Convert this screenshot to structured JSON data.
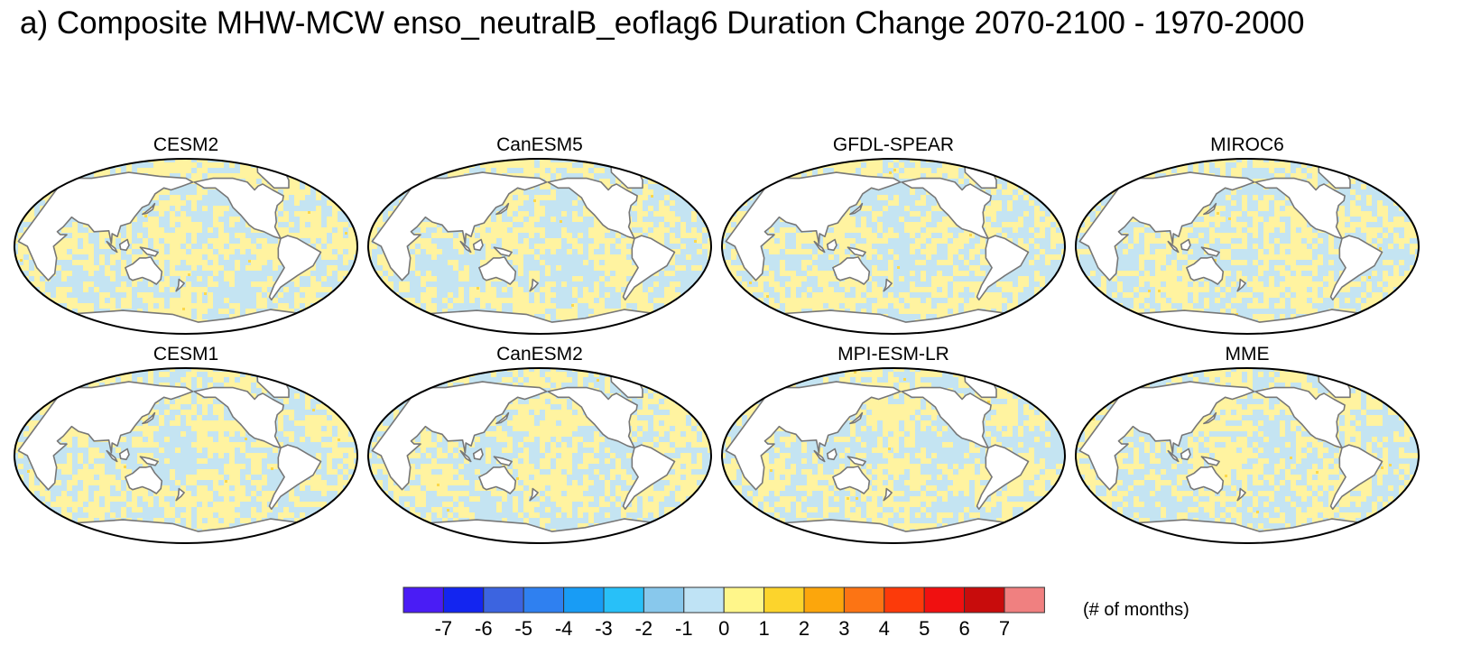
{
  "figure": {
    "title": "a) Composite MHW-MCW enso_neutralB_eoflag6 Duration Change 2070-2100 - 1970-2000"
  },
  "panels": [
    {
      "name": "CESM2"
    },
    {
      "name": "CanESM5"
    },
    {
      "name": "GFDL-SPEAR"
    },
    {
      "name": "MIROC6"
    },
    {
      "name": "CESM1"
    },
    {
      "name": "CanESM2"
    },
    {
      "name": "MPI-ESM-LR"
    },
    {
      "name": "MME"
    }
  ],
  "colorbar": {
    "labels": [
      "-7",
      "-6",
      "-5",
      "-4",
      "-3",
      "-2",
      "-1",
      "0",
      "1",
      "2",
      "3",
      "4",
      "5",
      "6",
      "7"
    ],
    "colors": [
      "#4a1cf5",
      "#1325f0",
      "#3c64e0",
      "#2f80f0",
      "#189cf5",
      "#28c0f8",
      "#88c8ec",
      "#bfe3f5",
      "#fff68a",
      "#fcd42c",
      "#fca60c",
      "#fc7414",
      "#fc3a0a",
      "#f01010",
      "#c80c0c",
      "#f08080"
    ],
    "units": "(# of months)"
  },
  "map_colors": {
    "ocean_positive": "#fff3a0",
    "ocean_negative": "#c4e4f2",
    "ocean_strong_pos": "#fcd84a",
    "land": "#ffffff",
    "coast": "#777777"
  }
}
